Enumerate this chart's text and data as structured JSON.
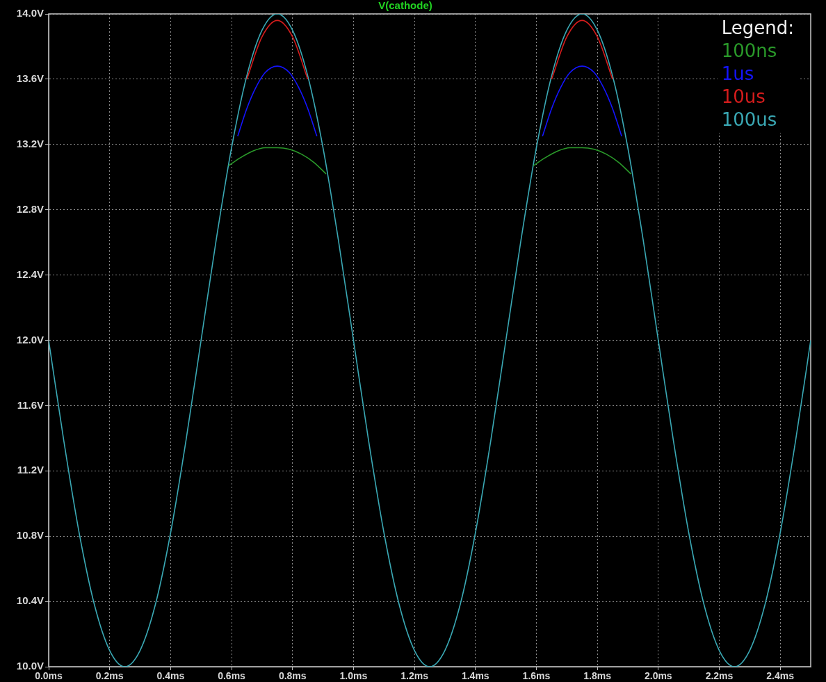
{
  "chart_data": {
    "type": "line",
    "title": "V(cathode)",
    "legend_title": "Legend:",
    "legend": "top right",
    "grid": true,
    "marker": "none",
    "line_style": "solid",
    "xlim": [
      0,
      2.5
    ],
    "ylim": [
      10,
      14
    ],
    "xticks": [
      {
        "value": 0,
        "label": "0.0ms"
      },
      {
        "value": 0.2,
        "label": "0.2ms"
      },
      {
        "value": 0.4,
        "label": "0.4ms"
      },
      {
        "value": 0.6,
        "label": "0.6ms"
      },
      {
        "value": 0.8,
        "label": "0.8ms"
      },
      {
        "value": 1.0,
        "label": "1.0ms"
      },
      {
        "value": 1.2,
        "label": "1.2ms"
      },
      {
        "value": 1.4,
        "label": "1.4ms"
      },
      {
        "value": 1.6,
        "label": "1.6ms"
      },
      {
        "value": 1.8,
        "label": "1.8ms"
      },
      {
        "value": 2.0,
        "label": "2.0ms"
      },
      {
        "value": 2.2,
        "label": "2.2ms"
      },
      {
        "value": 2.4,
        "label": "2.4ms"
      }
    ],
    "yticks": [
      {
        "value": 10,
        "label": "10.0V"
      },
      {
        "value": 10.4,
        "label": "10.4V"
      },
      {
        "value": 10.8,
        "label": "10.8V"
      },
      {
        "value": 11.2,
        "label": "11.2V"
      },
      {
        "value": 11.6,
        "label": "11.6V"
      },
      {
        "value": 12,
        "label": "12.0V"
      },
      {
        "value": 12.4,
        "label": "12.4V"
      },
      {
        "value": 12.8,
        "label": "12.8V"
      },
      {
        "value": 13.2,
        "label": "13.2V"
      },
      {
        "value": 13.6,
        "label": "13.6V"
      },
      {
        "value": 14,
        "label": "14.0V"
      }
    ],
    "series": [
      {
        "name": "100ns",
        "color": "#2a9a2a",
        "x": [
          0.59,
          0.63,
          0.67,
          0.71,
          0.75,
          0.79,
          0.83,
          0.87,
          0.91,
          1.25,
          1.59,
          1.63,
          1.67,
          1.71,
          1.75,
          1.79,
          1.83,
          1.87,
          1.91
        ],
        "values": [
          13.07,
          13.12,
          13.16,
          13.18,
          13.18,
          13.17,
          13.14,
          13.09,
          13.02,
          null,
          13.07,
          13.12,
          13.16,
          13.18,
          13.18,
          13.17,
          13.14,
          13.09,
          13.02
        ]
      },
      {
        "name": "1us",
        "color": "#1414ff",
        "x": [
          0.62,
          0.65,
          0.68,
          0.71,
          0.75,
          0.79,
          0.82,
          0.85,
          0.88,
          1.25,
          1.62,
          1.65,
          1.68,
          1.71,
          1.75,
          1.79,
          1.82,
          1.85,
          1.88
        ],
        "values": [
          13.25,
          13.42,
          13.55,
          13.64,
          13.68,
          13.64,
          13.55,
          13.42,
          13.25,
          null,
          13.25,
          13.42,
          13.55,
          13.64,
          13.68,
          13.64,
          13.55,
          13.42,
          13.25
        ]
      },
      {
        "name": "10us",
        "color": "#d41c1c",
        "x": [
          0.65,
          0.7,
          0.75,
          0.8,
          0.85,
          1.25,
          1.65,
          1.7,
          1.75,
          1.8,
          1.85
        ],
        "values": [
          13.6,
          13.86,
          13.96,
          13.86,
          13.6,
          null,
          13.6,
          13.86,
          13.96,
          13.86,
          13.6
        ]
      },
      {
        "name": "100us",
        "color": "#3aa8b4",
        "x": [
          0,
          0.05,
          0.1,
          0.15,
          0.2,
          0.25,
          0.3,
          0.35,
          0.4,
          0.45,
          0.5,
          0.55,
          0.6,
          0.65,
          0.7,
          0.75,
          0.8,
          0.85,
          0.9,
          0.95,
          1,
          1.05,
          1.1,
          1.15,
          1.2,
          1.25,
          1.3,
          1.35,
          1.4,
          1.45,
          1.5,
          1.55,
          1.6,
          1.65,
          1.7,
          1.75,
          1.8,
          1.85,
          1.9,
          1.95,
          2,
          2.05,
          2.1,
          2.15,
          2.2,
          2.25,
          2.3,
          2.35,
          2.4,
          2.45,
          2.5
        ],
        "values": [
          12.0,
          11.38,
          10.82,
          10.38,
          10.1,
          10.0,
          10.1,
          10.38,
          10.82,
          11.38,
          12.0,
          12.62,
          13.18,
          13.62,
          13.9,
          14.0,
          13.9,
          13.62,
          13.18,
          12.62,
          12.0,
          11.38,
          10.82,
          10.38,
          10.1,
          10.0,
          10.1,
          10.38,
          10.82,
          11.38,
          12.0,
          12.62,
          13.18,
          13.62,
          13.9,
          14.0,
          13.9,
          13.62,
          13.18,
          12.62,
          12.0,
          11.38,
          10.82,
          10.38,
          10.1,
          10.0,
          10.1,
          10.38,
          10.82,
          11.38,
          12.0
        ]
      }
    ]
  }
}
